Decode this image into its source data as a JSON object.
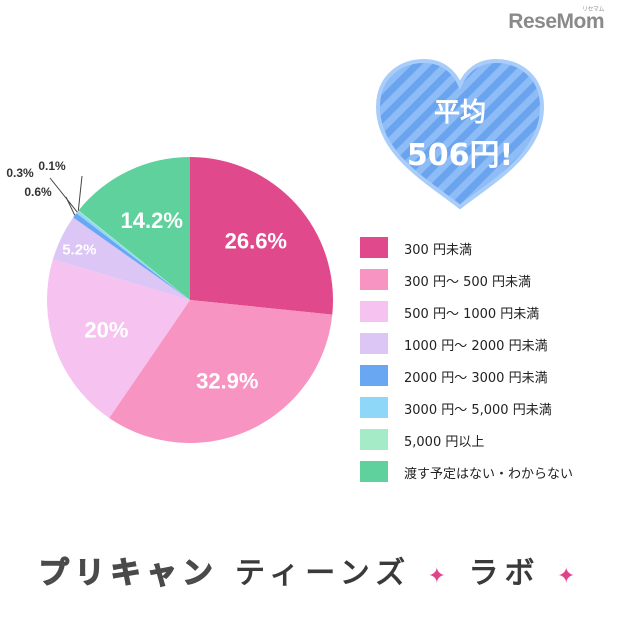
{
  "watermark": {
    "main": "ReseMom",
    "sub": "リセマム"
  },
  "average": {
    "label": "平均",
    "value": "506円!",
    "colors": {
      "heart": "#6aa3ee",
      "stripe": "#8dbcf6",
      "outline": "#a9cdfa"
    }
  },
  "chart_data": {
    "type": "pie",
    "start_angle_deg": 0,
    "direction": "clockwise",
    "slices": [
      {
        "label": "300 円未満",
        "value": 26.6,
        "display": "26.6%",
        "color": "#e04a8d"
      },
      {
        "label": "300 円～ 500 円未満",
        "value": 32.9,
        "display": "32.9%",
        "color": "#f794c2"
      },
      {
        "label": "500 円～ 1000 円未満",
        "value": 20,
        "display": "20%",
        "color": "#f6c2f0"
      },
      {
        "label": "1000 円～ 2000 円未満",
        "value": 5.2,
        "display": "5.2%",
        "color": "#dcc6f6"
      },
      {
        "label": "2000 円～ 3000 円未満",
        "value": 0.6,
        "display": "0.6%",
        "color": "#6aa7f3"
      },
      {
        "label": "3000 円～ 5,000 円未満",
        "value": 0.3,
        "display": "0.3%",
        "color": "#8fd7f9"
      },
      {
        "label": "5,000 円以上",
        "value": 0.1,
        "display": "0.1%",
        "color": "#a6ebc8"
      },
      {
        "label": "渡す予定はない・わからない",
        "value": 14.2,
        "display": "14.2%",
        "color": "#5fd19c"
      }
    ]
  },
  "footer": {
    "part1": "プリキャン",
    "part2": "ティーンズ",
    "part3": "ラボ",
    "sparkle": "✦"
  }
}
